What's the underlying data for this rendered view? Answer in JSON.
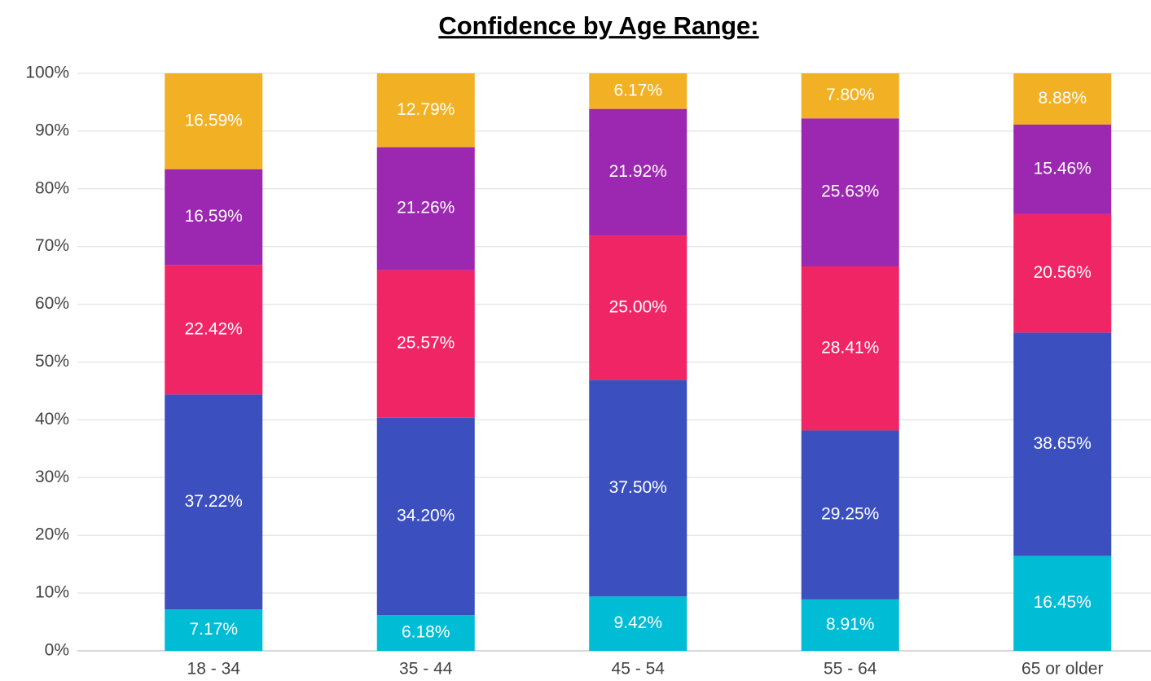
{
  "chart_data": {
    "type": "stacked_bar",
    "title": "Confidence by Age Range:",
    "categories": [
      "18 - 34",
      "35 - 44",
      "45 - 54",
      "55 - 64",
      "65 or older"
    ],
    "series": [
      {
        "color": "#00bcd4",
        "values": [
          7.17,
          6.18,
          9.42,
          8.91,
          16.45
        ],
        "value_labels": [
          "7.17%",
          "6.18%",
          "9.42%",
          "8.91%",
          "16.45%"
        ]
      },
      {
        "color": "#3b4fbe",
        "values": [
          37.22,
          34.2,
          37.5,
          29.25,
          38.65
        ],
        "value_labels": [
          "37.22%",
          "34.20%",
          "37.50%",
          "29.25%",
          "38.65%"
        ]
      },
      {
        "color": "#f02566",
        "values": [
          22.42,
          25.57,
          25.0,
          28.41,
          20.56
        ],
        "value_labels": [
          "22.42%",
          "25.57%",
          "25.00%",
          "28.41%",
          "20.56%"
        ]
      },
      {
        "color": "#9c27b0",
        "values": [
          16.59,
          21.26,
          21.92,
          25.63,
          15.46
        ],
        "value_labels": [
          "16.59%",
          "21.26%",
          "21.92%",
          "25.63%",
          "15.46%"
        ]
      },
      {
        "color": "#f2b124",
        "values": [
          16.59,
          12.79,
          6.17,
          7.8,
          8.88
        ],
        "value_labels": [
          "16.59%",
          "12.79%",
          "6.17%",
          "7.80%",
          "8.88%"
        ]
      }
    ],
    "ylim": [
      0,
      100
    ],
    "yticks": [
      {
        "value": 0,
        "label": "0%"
      },
      {
        "value": 10,
        "label": "10%"
      },
      {
        "value": 20,
        "label": "20%"
      },
      {
        "value": 30,
        "label": "30%"
      },
      {
        "value": 40,
        "label": "40%"
      },
      {
        "value": 50,
        "label": "50%"
      },
      {
        "value": 60,
        "label": "60%"
      },
      {
        "value": 70,
        "label": "70%"
      },
      {
        "value": 80,
        "label": "80%"
      },
      {
        "value": 90,
        "label": "90%"
      },
      {
        "value": 100,
        "label": "100%"
      }
    ],
    "grid": true
  }
}
